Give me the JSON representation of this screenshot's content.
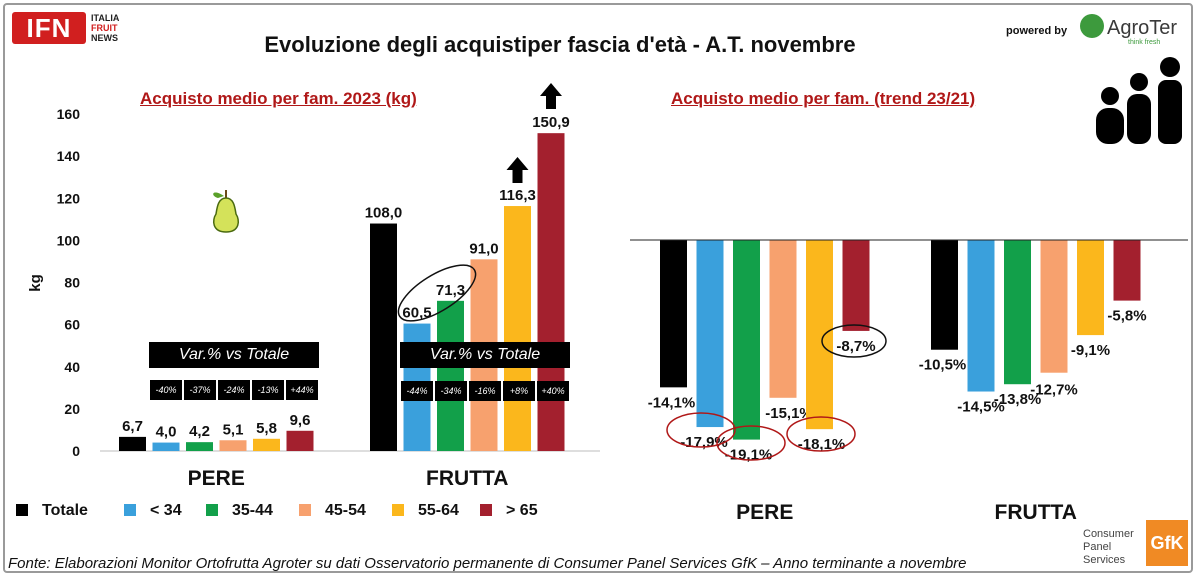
{
  "header": {
    "title": "Evoluzione degli acquistiper fascia d'età - A.T. novembre",
    "logo_left": "IFN",
    "logo_left_lines": [
      "ITALIA",
      "FRUIT",
      "NEWS"
    ],
    "powered_by": "powered by",
    "logo_right": "AgroTer",
    "logo_right_tagline": "think fresh"
  },
  "chart_data": [
    {
      "type": "bar",
      "title": "Acquisto medio per fam. 2023 (kg)",
      "ylabel": "kg",
      "ylim": [
        0,
        160
      ],
      "yticks": [
        0,
        20,
        40,
        60,
        80,
        100,
        120,
        140,
        160
      ],
      "categories": [
        "PERE",
        "FRUTTA"
      ],
      "series": [
        {
          "name": "Totale",
          "values": [
            6.7,
            108.0
          ],
          "labels": [
            "6,7",
            "108,0"
          ]
        },
        {
          "name": "< 34",
          "values": [
            4.0,
            60.5
          ],
          "labels": [
            "4,0",
            "60,5"
          ]
        },
        {
          "name": "35-44",
          "values": [
            4.2,
            71.3
          ],
          "labels": [
            "4,2",
            "71,3"
          ]
        },
        {
          "name": "45-54",
          "values": [
            5.1,
            91.0
          ],
          "labels": [
            "5,1",
            "91,0"
          ]
        },
        {
          "name": "55-64",
          "values": [
            5.8,
            116.3
          ],
          "labels": [
            "5,8",
            "116,3"
          ]
        },
        {
          "name": "> 65",
          "values": [
            9.6,
            150.9
          ],
          "labels": [
            "9,6",
            "150,9"
          ]
        }
      ],
      "annotation_title": "Var.% vs Totale",
      "annotations": {
        "PERE": [
          "-40%",
          "-37%",
          "-24%",
          "-13%",
          "+44%"
        ],
        "FRUTTA": [
          "-44%",
          "-34%",
          "-16%",
          "+8%",
          "+40%"
        ]
      }
    },
    {
      "type": "bar",
      "title": "Acquisto medio per fam. (trend 23/21)",
      "categories": [
        "PERE",
        "FRUTTA"
      ],
      "ylim": [
        -22,
        0
      ],
      "series": [
        {
          "name": "Totale",
          "values": [
            -14.1,
            -10.5
          ],
          "labels": [
            "-14,1%",
            "-10,5%"
          ]
        },
        {
          "name": "< 34",
          "values": [
            -17.9,
            -14.5
          ],
          "labels": [
            "-17,9%",
            "-14,5%"
          ]
        },
        {
          "name": "35-44",
          "values": [
            -19.1,
            -13.8
          ],
          "labels": [
            "-19,1%",
            "-13,8%"
          ]
        },
        {
          "name": "45-54",
          "values": [
            -15.1,
            -12.7
          ],
          "labels": [
            "-15,1%",
            "-12,7%"
          ]
        },
        {
          "name": "55-64",
          "values": [
            -18.1,
            -9.1
          ],
          "labels": [
            "-18,1%",
            "-9,1%"
          ]
        },
        {
          "name": "> 65",
          "values": [
            -8.7,
            -5.8
          ],
          "labels": [
            "-8,7%",
            "-5,8%"
          ]
        }
      ]
    }
  ],
  "colors": [
    "#000000",
    "#3aa0dc",
    "#12a04a",
    "#f7a16e",
    "#fbb71c",
    "#a3202e"
  ],
  "legend": [
    "Totale",
    "< 34",
    "35-44",
    "45-54",
    "55-64",
    "> 65"
  ],
  "footer": {
    "source": "Fonte: Elaborazioni Monitor Ortofrutta Agroter su dati Osservatorio permanente di Consumer Panel Services GfK – Anno terminante a novembre",
    "provider_lines": [
      "Consumer",
      "Panel",
      "Services"
    ],
    "provider_logo": "GfK"
  }
}
